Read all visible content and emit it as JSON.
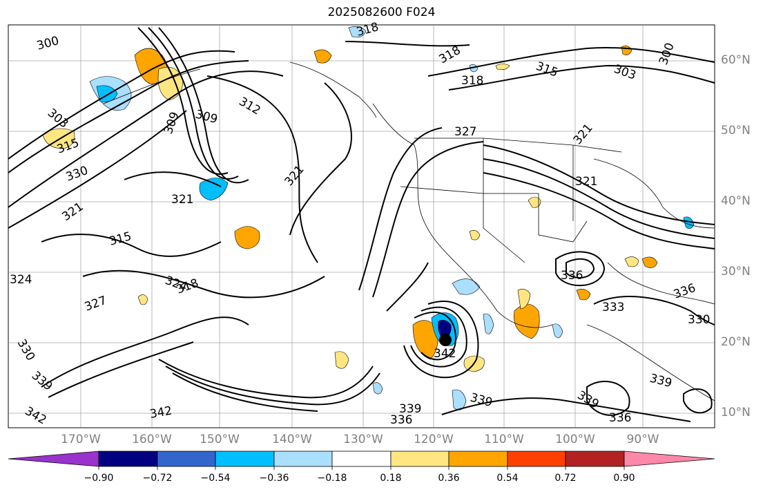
{
  "title": "2025082600 F024",
  "lat_labels": [
    "60°N",
    "50°N",
    "40°N",
    "30°N",
    "20°N",
    "10°N"
  ],
  "lon_labels": [
    "170°W",
    "160°W",
    "150°W",
    "140°W",
    "130°W",
    "120°W",
    "110°W",
    "100°W",
    "90°W"
  ],
  "colorbar": {
    "ticks": [
      "−0.90",
      "−0.72",
      "−0.54",
      "−0.36",
      "−0.18",
      "0.18",
      "0.36",
      "0.54",
      "0.72",
      "0.90"
    ],
    "colors": [
      "#9933cc",
      "#000080",
      "#3366cc",
      "#00bfff",
      "#aadfff",
      "#ffffff",
      "#ffe680",
      "#ffa500",
      "#ff4000",
      "#b22222",
      "#ff88aa"
    ]
  },
  "contour_labels": [
    "300",
    "318",
    "318",
    "318",
    "315",
    "303",
    "300",
    "309",
    "312",
    "303",
    "327",
    "321",
    "309",
    "315",
    "330",
    "321",
    "321",
    "321",
    "321",
    "315",
    "318",
    "324",
    "324",
    "327",
    "330",
    "336",
    "333",
    "336",
    "330",
    "342",
    "339",
    "339",
    "336",
    "342",
    "339",
    "342",
    "336",
    "339",
    "339"
  ],
  "map_features": {
    "contour_color": "#000000",
    "grid_color": "#808080",
    "positive_shading": "#ffe680",
    "negative_shading": "#aadfff",
    "storm_marker": "black-dot"
  }
}
